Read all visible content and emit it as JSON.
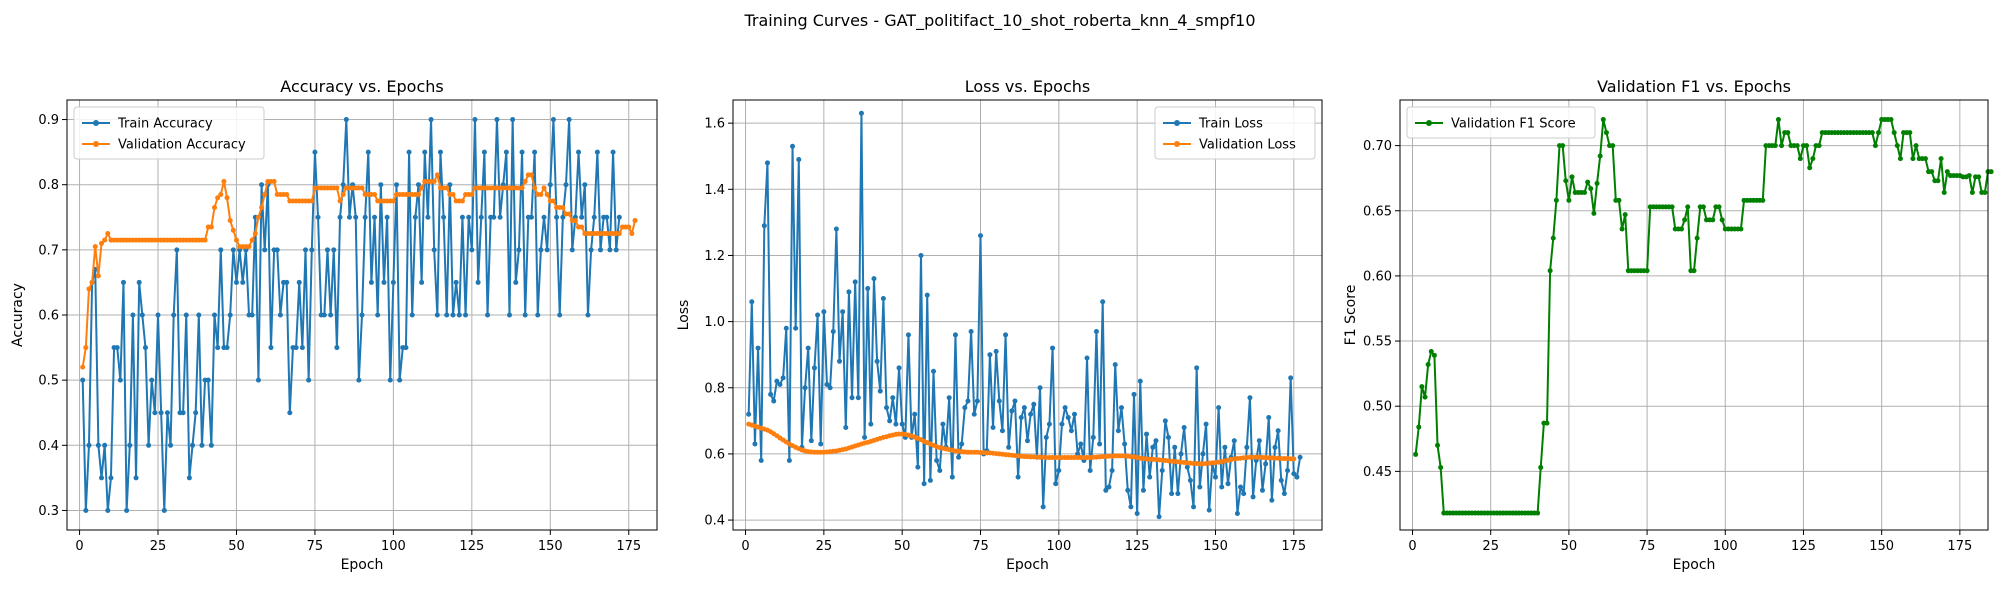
{
  "figure": {
    "suptitle": "Training Curves - GAT_politifact_10_shot_roberta_knn_4_smpf10"
  },
  "colors": {
    "train": "#1f77b4",
    "validation": "#ff7f0e",
    "f1": "#008000",
    "grid": "#b0b0b0"
  },
  "chart_data": [
    {
      "type": "line",
      "title": "Accuracy vs. Epochs",
      "xlabel": "Epoch",
      "ylabel": "Accuracy",
      "xlim": [
        -4,
        184
      ],
      "ylim": [
        0.27,
        0.93
      ],
      "xticks": [
        0,
        25,
        50,
        75,
        100,
        125,
        150,
        175
      ],
      "yticks": [
        0.3,
        0.4,
        0.5,
        0.6,
        0.7,
        0.8,
        0.9
      ],
      "ytick_labels": [
        "0.3",
        "0.4",
        "0.5",
        "0.6",
        "0.7",
        "0.8",
        "0.9"
      ],
      "grid": true,
      "legend": "upper-left",
      "series": [
        {
          "name": "Train Accuracy",
          "color": "#1f77b4",
          "x_start": 1,
          "values": [
            0.5,
            0.3,
            0.4,
            0.65,
            0.67,
            0.4,
            0.35,
            0.4,
            0.3,
            0.35,
            0.55,
            0.55,
            0.5,
            0.65,
            0.3,
            0.4,
            0.6,
            0.35,
            0.65,
            0.6,
            0.55,
            0.4,
            0.5,
            0.45,
            0.6,
            0.45,
            0.3,
            0.45,
            0.4,
            0.6,
            0.7,
            0.45,
            0.45,
            0.6,
            0.35,
            0.4,
            0.45,
            0.6,
            0.4,
            0.5,
            0.5,
            0.4,
            0.6,
            0.55,
            0.7,
            0.55,
            0.55,
            0.6,
            0.7,
            0.65,
            0.7,
            0.65,
            0.7,
            0.6,
            0.6,
            0.75,
            0.5,
            0.8,
            0.7,
            0.8,
            0.55,
            0.7,
            0.7,
            0.6,
            0.65,
            0.65,
            0.45,
            0.55,
            0.55,
            0.65,
            0.55,
            0.7,
            0.5,
            0.7,
            0.85,
            0.75,
            0.6,
            0.6,
            0.7,
            0.6,
            0.7,
            0.55,
            0.75,
            0.8,
            0.9,
            0.75,
            0.8,
            0.75,
            0.5,
            0.6,
            0.75,
            0.85,
            0.65,
            0.75,
            0.6,
            0.8,
            0.65,
            0.75,
            0.5,
            0.65,
            0.8,
            0.5,
            0.55,
            0.55,
            0.85,
            0.6,
            0.75,
            0.8,
            0.65,
            0.85,
            0.75,
            0.9,
            0.7,
            0.6,
            0.85,
            0.75,
            0.6,
            0.8,
            0.6,
            0.65,
            0.6,
            0.75,
            0.6,
            0.75,
            0.7,
            0.9,
            0.65,
            0.75,
            0.85,
            0.6,
            0.75,
            0.75,
            0.9,
            0.75,
            0.8,
            0.85,
            0.6,
            0.9,
            0.65,
            0.7,
            0.85,
            0.6,
            0.75,
            0.75,
            0.85,
            0.6,
            0.7,
            0.75,
            0.7,
            0.8,
            0.9,
            0.75,
            0.6,
            0.75,
            0.8,
            0.9,
            0.7,
            0.75,
            0.85,
            0.75,
            0.8,
            0.6,
            0.7,
            0.75,
            0.85,
            0.7,
            0.75,
            0.75,
            0.7,
            0.85,
            0.7,
            0.75
          ]
        },
        {
          "name": "Validation Accuracy",
          "color": "#ff7f0e",
          "x_start": 1,
          "values": [
            0.52,
            0.55,
            0.64,
            0.65,
            0.705,
            0.66,
            0.71,
            0.715,
            0.725,
            0.715,
            0.715,
            0.715,
            0.715,
            0.715,
            0.715,
            0.715,
            0.715,
            0.715,
            0.715,
            0.715,
            0.715,
            0.715,
            0.715,
            0.715,
            0.715,
            0.715,
            0.715,
            0.715,
            0.715,
            0.715,
            0.715,
            0.715,
            0.715,
            0.715,
            0.715,
            0.715,
            0.715,
            0.715,
            0.715,
            0.715,
            0.735,
            0.735,
            0.765,
            0.78,
            0.785,
            0.805,
            0.78,
            0.745,
            0.73,
            0.715,
            0.705,
            0.705,
            0.705,
            0.705,
            0.715,
            0.725,
            0.75,
            0.765,
            0.785,
            0.805,
            0.805,
            0.805,
            0.785,
            0.785,
            0.785,
            0.785,
            0.775,
            0.775,
            0.775,
            0.775,
            0.775,
            0.775,
            0.775,
            0.775,
            0.795,
            0.795,
            0.795,
            0.795,
            0.795,
            0.795,
            0.795,
            0.795,
            0.775,
            0.785,
            0.795,
            0.795,
            0.795,
            0.795,
            0.795,
            0.795,
            0.785,
            0.785,
            0.785,
            0.785,
            0.775,
            0.775,
            0.775,
            0.775,
            0.775,
            0.775,
            0.785,
            0.785,
            0.785,
            0.785,
            0.785,
            0.785,
            0.785,
            0.785,
            0.795,
            0.805,
            0.805,
            0.805,
            0.805,
            0.815,
            0.795,
            0.795,
            0.795,
            0.785,
            0.785,
            0.775,
            0.775,
            0.775,
            0.785,
            0.785,
            0.785,
            0.795,
            0.795,
            0.795,
            0.795,
            0.795,
            0.795,
            0.795,
            0.795,
            0.795,
            0.795,
            0.795,
            0.795,
            0.795,
            0.795,
            0.795,
            0.795,
            0.805,
            0.815,
            0.815,
            0.795,
            0.785,
            0.785,
            0.795,
            0.785,
            0.775,
            0.775,
            0.765,
            0.765,
            0.765,
            0.755,
            0.755,
            0.745,
            0.745,
            0.735,
            0.735,
            0.725,
            0.725,
            0.725,
            0.725,
            0.725,
            0.725,
            0.725,
            0.725,
            0.725,
            0.725,
            0.725,
            0.725,
            0.735,
            0.735,
            0.735,
            0.725,
            0.745
          ]
        }
      ]
    },
    {
      "type": "line",
      "title": "Loss vs. Epochs",
      "xlabel": "Epoch",
      "ylabel": "Loss",
      "xlim": [
        -4,
        184
      ],
      "ylim": [
        0.37,
        1.67
      ],
      "xticks": [
        0,
        25,
        50,
        75,
        100,
        125,
        150,
        175
      ],
      "yticks": [
        0.4,
        0.6,
        0.8,
        1.0,
        1.2,
        1.4,
        1.6
      ],
      "ytick_labels": [
        "0.4",
        "0.6",
        "0.8",
        "1.0",
        "1.2",
        "1.4",
        "1.6"
      ],
      "grid": true,
      "legend": "upper-right",
      "series": [
        {
          "name": "Train Loss",
          "color": "#1f77b4",
          "x_start": 1,
          "values": [
            0.72,
            1.06,
            0.63,
            0.92,
            0.58,
            1.29,
            1.48,
            0.78,
            0.76,
            0.82,
            0.81,
            0.83,
            0.98,
            0.58,
            1.53,
            0.98,
            1.49,
            0.62,
            0.8,
            0.92,
            0.64,
            0.86,
            1.02,
            0.63,
            1.03,
            0.81,
            0.8,
            0.97,
            1.28,
            0.88,
            1.03,
            0.68,
            1.09,
            0.77,
            1.12,
            0.77,
            1.63,
            0.65,
            1.1,
            0.69,
            1.13,
            0.88,
            0.79,
            1.07,
            0.74,
            0.7,
            0.77,
            0.69,
            0.86,
            0.69,
            0.65,
            0.96,
            0.65,
            0.72,
            0.56,
            1.2,
            0.51,
            1.08,
            0.52,
            0.85,
            0.58,
            0.55,
            0.69,
            0.62,
            0.77,
            0.53,
            0.96,
            0.59,
            0.63,
            0.74,
            0.76,
            0.97,
            0.72,
            0.76,
            1.26,
            0.6,
            0.61,
            0.9,
            0.68,
            0.91,
            0.76,
            0.67,
            0.96,
            0.62,
            0.73,
            0.76,
            0.53,
            0.71,
            0.74,
            0.64,
            0.72,
            0.75,
            0.59,
            0.8,
            0.44,
            0.65,
            0.69,
            0.92,
            0.51,
            0.55,
            0.69,
            0.74,
            0.71,
            0.67,
            0.72,
            0.6,
            0.63,
            0.58,
            0.89,
            0.55,
            0.65,
            0.97,
            0.63,
            1.06,
            0.49,
            0.5,
            0.55,
            0.87,
            0.67,
            0.74,
            0.63,
            0.49,
            0.44,
            0.78,
            0.42,
            0.82,
            0.49,
            0.66,
            0.53,
            0.62,
            0.64,
            0.41,
            0.55,
            0.7,
            0.65,
            0.48,
            0.62,
            0.48,
            0.6,
            0.68,
            0.56,
            0.52,
            0.44,
            0.86,
            0.5,
            0.6,
            0.69,
            0.43,
            0.57,
            0.53,
            0.74,
            0.5,
            0.62,
            0.51,
            0.59,
            0.64,
            0.42,
            0.5,
            0.48,
            0.62,
            0.77,
            0.47,
            0.58,
            0.64,
            0.49,
            0.57,
            0.71,
            0.46,
            0.62,
            0.67,
            0.52,
            0.48,
            0.55,
            0.83,
            0.54,
            0.53,
            0.59
          ]
        },
        {
          "name": "Validation Loss",
          "color": "#ff7f0e",
          "x_start": 1,
          "values": [
            0.69,
            0.687,
            0.684,
            0.681,
            0.678,
            0.675,
            0.672,
            0.667,
            0.661,
            0.655,
            0.648,
            0.642,
            0.636,
            0.63,
            0.625,
            0.62,
            0.616,
            0.612,
            0.609,
            0.607,
            0.606,
            0.605,
            0.605,
            0.605,
            0.605,
            0.606,
            0.607,
            0.608,
            0.609,
            0.611,
            0.613,
            0.615,
            0.618,
            0.621,
            0.624,
            0.627,
            0.63,
            0.633,
            0.635,
            0.638,
            0.641,
            0.644,
            0.647,
            0.65,
            0.652,
            0.655,
            0.657,
            0.659,
            0.66,
            0.66,
            0.659,
            0.657,
            0.654,
            0.651,
            0.647,
            0.643,
            0.638,
            0.634,
            0.63,
            0.626,
            0.622,
            0.619,
            0.617,
            0.615,
            0.613,
            0.611,
            0.609,
            0.608,
            0.607,
            0.606,
            0.605,
            0.605,
            0.605,
            0.605,
            0.604,
            0.604,
            0.603,
            0.603,
            0.602,
            0.601,
            0.6,
            0.599,
            0.598,
            0.597,
            0.596,
            0.595,
            0.594,
            0.593,
            0.592,
            0.592,
            0.591,
            0.591,
            0.59,
            0.59,
            0.59,
            0.589,
            0.589,
            0.589,
            0.589,
            0.589,
            0.589,
            0.589,
            0.589,
            0.589,
            0.589,
            0.589,
            0.589,
            0.589,
            0.589,
            0.589,
            0.59,
            0.59,
            0.591,
            0.592,
            0.592,
            0.593,
            0.593,
            0.594,
            0.594,
            0.594,
            0.594,
            0.593,
            0.592,
            0.591,
            0.589,
            0.587,
            0.586,
            0.585,
            0.584,
            0.584,
            0.583,
            0.582,
            0.581,
            0.58,
            0.579,
            0.578,
            0.577,
            0.576,
            0.575,
            0.574,
            0.573,
            0.572,
            0.571,
            0.571,
            0.57,
            0.57,
            0.571,
            0.572,
            0.573,
            0.574,
            0.575,
            0.577,
            0.579,
            0.581,
            0.583,
            0.585,
            0.586,
            0.587,
            0.588,
            0.589,
            0.59,
            0.59,
            0.59,
            0.59,
            0.589,
            0.589,
            0.588,
            0.588,
            0.587,
            0.587,
            0.586,
            0.586,
            0.586,
            0.585,
            0.585
          ]
        }
      ]
    },
    {
      "type": "line",
      "title": "Validation F1 vs. Epochs",
      "xlabel": "Epoch",
      "ylabel": "F1 Score",
      "xlim": [
        -4,
        184
      ],
      "ylim": [
        0.405,
        0.735
      ],
      "xticks": [
        0,
        25,
        50,
        75,
        100,
        125,
        150,
        175
      ],
      "yticks": [
        0.45,
        0.5,
        0.55,
        0.6,
        0.65,
        0.7
      ],
      "ytick_labels": [
        "0.45",
        "0.50",
        "0.55",
        "0.60",
        "0.65",
        "0.70"
      ],
      "grid": true,
      "legend": "upper-left",
      "series": [
        {
          "name": "Validation F1 Score",
          "color": "#008000",
          "x_start": 1,
          "values": [
            0.463,
            0.484,
            0.515,
            0.507,
            0.532,
            0.542,
            0.539,
            0.47,
            0.453,
            0.418,
            0.418,
            0.418,
            0.418,
            0.418,
            0.418,
            0.418,
            0.418,
            0.418,
            0.418,
            0.418,
            0.418,
            0.418,
            0.418,
            0.418,
            0.418,
            0.418,
            0.418,
            0.418,
            0.418,
            0.418,
            0.418,
            0.418,
            0.418,
            0.418,
            0.418,
            0.418,
            0.418,
            0.418,
            0.418,
            0.418,
            0.453,
            0.487,
            0.487,
            0.604,
            0.629,
            0.658,
            0.7,
            0.7,
            0.673,
            0.658,
            0.676,
            0.664,
            0.664,
            0.664,
            0.664,
            0.672,
            0.667,
            0.648,
            0.671,
            0.692,
            0.72,
            0.71,
            0.7,
            0.7,
            0.658,
            0.658,
            0.636,
            0.647,
            0.604,
            0.604,
            0.604,
            0.604,
            0.604,
            0.604,
            0.604,
            0.653,
            0.653,
            0.653,
            0.653,
            0.653,
            0.653,
            0.653,
            0.653,
            0.636,
            0.636,
            0.636,
            0.643,
            0.653,
            0.604,
            0.604,
            0.629,
            0.653,
            0.653,
            0.643,
            0.643,
            0.643,
            0.653,
            0.653,
            0.643,
            0.636,
            0.636,
            0.636,
            0.636,
            0.636,
            0.636,
            0.658,
            0.658,
            0.658,
            0.658,
            0.658,
            0.658,
            0.658,
            0.7,
            0.7,
            0.7,
            0.7,
            0.72,
            0.7,
            0.71,
            0.71,
            0.7,
            0.7,
            0.7,
            0.69,
            0.7,
            0.7,
            0.683,
            0.69,
            0.7,
            0.7,
            0.71,
            0.71,
            0.71,
            0.71,
            0.71,
            0.71,
            0.71,
            0.71,
            0.71,
            0.71,
            0.71,
            0.71,
            0.71,
            0.71,
            0.71,
            0.71,
            0.71,
            0.7,
            0.71,
            0.72,
            0.72,
            0.72,
            0.72,
            0.71,
            0.7,
            0.69,
            0.71,
            0.71,
            0.71,
            0.69,
            0.7,
            0.69,
            0.69,
            0.69,
            0.68,
            0.68,
            0.673,
            0.673,
            0.69,
            0.664,
            0.68,
            0.677,
            0.677,
            0.677,
            0.677,
            0.676,
            0.676,
            0.677,
            0.664,
            0.676,
            0.676,
            0.664,
            0.664,
            0.68,
            0.68
          ]
        }
      ]
    }
  ]
}
